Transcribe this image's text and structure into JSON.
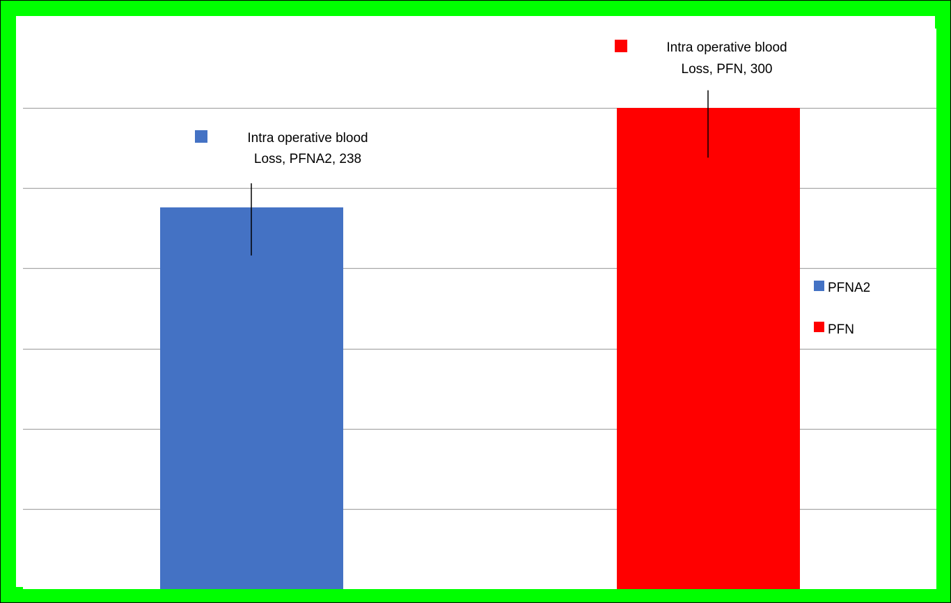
{
  "chart_data": {
    "type": "bar",
    "title": "",
    "xlabel": "",
    "ylabel": "",
    "categories": [
      "PFNA2",
      "PFN"
    ],
    "series": [
      {
        "name": "Intra operative blood Loss",
        "values": [
          238,
          300
        ]
      }
    ],
    "ylim": [
      0,
      350
    ],
    "y_gridlines": [
      50,
      100,
      150,
      200,
      250,
      300
    ],
    "y_tick_labels_shown": false,
    "x_tick_labels_shown": false,
    "grid": true,
    "error_bars": [
      {
        "category": "PFNA2",
        "low": 208,
        "high": 253
      },
      {
        "category": "PFN",
        "low": 269,
        "high": 311
      }
    ],
    "data_labels": [
      {
        "line1": "Intra operative blood",
        "line2": "Loss, PFNA2, 238"
      },
      {
        "line1": "Intra operative blood",
        "line2": "Loss, PFN, 300"
      }
    ],
    "legend": {
      "position": "right",
      "entries": [
        "PFNA2",
        "PFN"
      ]
    },
    "colors": {
      "PFNA2": "#4472C4",
      "PFN": "#FF0000",
      "frame_border": "#00FF00",
      "gridline": "#A6A6A6",
      "background": "#FFFFFF"
    }
  }
}
